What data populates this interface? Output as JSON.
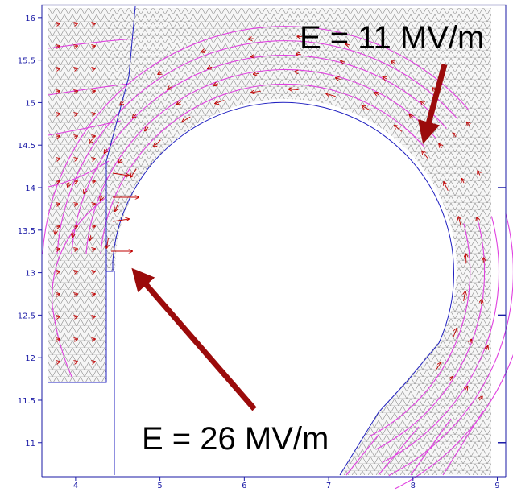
{
  "chart_data": {
    "type": "diagram",
    "x_ticks": [
      "4",
      "5",
      "6",
      "7",
      "8",
      "9"
    ],
    "y_ticks": [
      "16",
      "15.5",
      "15",
      "14.5",
      "14",
      "13.5",
      "13",
      "12.5",
      "12",
      "11.5",
      "11"
    ],
    "xlim": [
      3.6,
      9.1
    ],
    "ylim": [
      10.6,
      16.15
    ],
    "annotations": [
      {
        "text": "E = 11 MV/m",
        "points_to": [
          8.05,
          14.45
        ]
      },
      {
        "text": "E = 26 MV/m",
        "points_to": [
          4.55,
          13.05
        ]
      }
    ],
    "colors": {
      "axis": "#1a1aa6",
      "boundary": "#2020c0",
      "field_lines": "#e040e0",
      "field_vectors": "#c00000",
      "arrow": "#9b0b0b",
      "mesh": "#8a8a8a"
    }
  }
}
